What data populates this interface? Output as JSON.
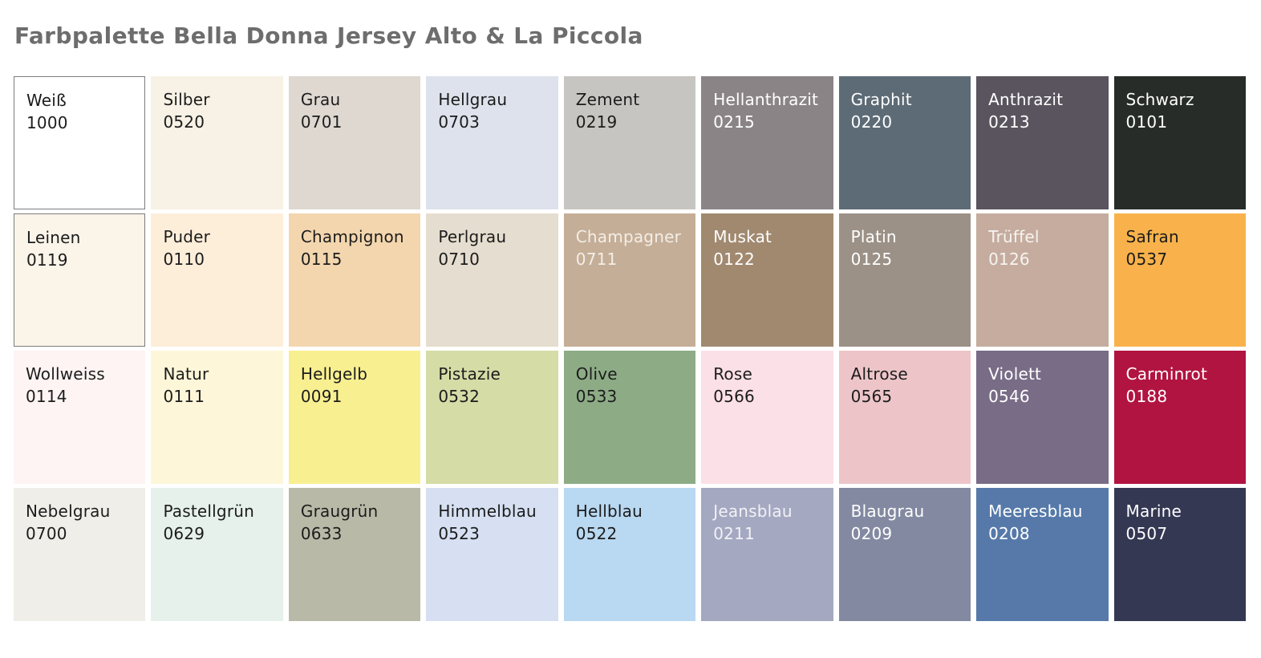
{
  "chart_data": {
    "type": "table",
    "title": "Farbpalette Bella Donna Jersey Alto & La Piccola",
    "title_color": "#6d6d6d",
    "grid": {
      "columns": 9,
      "rows": 4
    },
    "swatches": [
      {
        "name": "Weiß",
        "code": "1000",
        "color": "#ffffff",
        "text_color": "#1c1c1c",
        "border": true
      },
      {
        "name": "Silber",
        "code": "0520",
        "color": "#f7f2e5",
        "text_color": "#1c1c1c",
        "border": false
      },
      {
        "name": "Grau",
        "code": "0701",
        "color": "#ded8d1",
        "text_color": "#1c1c1c",
        "border": false
      },
      {
        "name": "Hellgrau",
        "code": "0703",
        "color": "#dde2ec",
        "text_color": "#1c1c1c",
        "border": false
      },
      {
        "name": "Zement",
        "code": "0219",
        "color": "#c7c5c1",
        "text_color": "#1c1c1c",
        "border": false
      },
      {
        "name": "Hellanthrazit",
        "code": "0215",
        "color": "#8a8487",
        "text_color": "#ffffff",
        "border": false
      },
      {
        "name": "Graphit",
        "code": "0220",
        "color": "#5d6b76",
        "text_color": "#ffffff",
        "border": false
      },
      {
        "name": "Anthrazit",
        "code": "0213",
        "color": "#5a545e",
        "text_color": "#ffffff",
        "border": false
      },
      {
        "name": "Schwarz",
        "code": "0101",
        "color": "#272c28",
        "text_color": "#ffffff",
        "border": false
      },
      {
        "name": "Leinen",
        "code": "0119",
        "color": "#faf4e9",
        "text_color": "#1c1c1c",
        "border": true
      },
      {
        "name": "Puder",
        "code": "0110",
        "color": "#fdeeda",
        "text_color": "#1c1c1c",
        "border": false
      },
      {
        "name": "Champignon",
        "code": "0115",
        "color": "#f3d6ae",
        "text_color": "#1c1c1c",
        "border": false
      },
      {
        "name": "Perlgrau",
        "code": "0710",
        "color": "#e5ddcf",
        "text_color": "#1c1c1c",
        "border": false
      },
      {
        "name": "Champagner",
        "code": "0711",
        "color": "#c5ae97",
        "text_color": "#f3eee7",
        "border": false
      },
      {
        "name": "Muskat",
        "code": "0122",
        "color": "#a18970",
        "text_color": "#ffffff",
        "border": false
      },
      {
        "name": "Platin",
        "code": "0125",
        "color": "#9b9186",
        "text_color": "#ffffff",
        "border": false
      },
      {
        "name": "Trüffel",
        "code": "0126",
        "color": "#c5ac9f",
        "text_color": "#f7f4f0",
        "border": false
      },
      {
        "name": "Safran",
        "code": "0537",
        "color": "#f9b24b",
        "text_color": "#1c1c1c",
        "border": false
      },
      {
        "name": "Wollweiss",
        "code": "0114",
        "color": "#fdf4f3",
        "text_color": "#1c1c1c",
        "border": false
      },
      {
        "name": "Natur",
        "code": "0111",
        "color": "#fdf6d9",
        "text_color": "#1c1c1c",
        "border": false
      },
      {
        "name": "Hellgelb",
        "code": "0091",
        "color": "#f8ef90",
        "text_color": "#1c1c1c",
        "border": false
      },
      {
        "name": "Pistazie",
        "code": "0532",
        "color": "#d5dca6",
        "text_color": "#1c1c1c",
        "border": false
      },
      {
        "name": "Olive",
        "code": "0533",
        "color": "#8dac86",
        "text_color": "#1c1c1c",
        "border": false
      },
      {
        "name": "Rose",
        "code": "0566",
        "color": "#fce0e7",
        "text_color": "#1c1c1c",
        "border": false
      },
      {
        "name": "Altrose",
        "code": "0565",
        "color": "#edc5c8",
        "text_color": "#1c1c1c",
        "border": false
      },
      {
        "name": "Violett",
        "code": "0546",
        "color": "#786c86",
        "text_color": "#ffffff",
        "border": false
      },
      {
        "name": "Carminrot",
        "code": "0188",
        "color": "#b11441",
        "text_color": "#ffffff",
        "border": false
      },
      {
        "name": "Nebelgrau",
        "code": "0700",
        "color": "#efeee9",
        "text_color": "#1c1c1c",
        "border": false
      },
      {
        "name": "Pastellgrün",
        "code": "0629",
        "color": "#e5f1ea",
        "text_color": "#1c1c1c",
        "border": false
      },
      {
        "name": "Graugrün",
        "code": "0633",
        "color": "#b9b9a7",
        "text_color": "#1c1c1c",
        "border": false
      },
      {
        "name": "Himmelblau",
        "code": "0523",
        "color": "#d6e0f2",
        "text_color": "#1c1c1c",
        "border": false
      },
      {
        "name": "Hellblau",
        "code": "0522",
        "color": "#b9d8f1",
        "text_color": "#1c1c1c",
        "border": false
      },
      {
        "name": "Jeansblau",
        "code": "0211",
        "color": "#a4a8c1",
        "text_color": "#f2f2f5",
        "border": false
      },
      {
        "name": "Blaugrau",
        "code": "0209",
        "color": "#8389a1",
        "text_color": "#ffffff",
        "border": false
      },
      {
        "name": "Meeresblau",
        "code": "0208",
        "color": "#5679a9",
        "text_color": "#ffffff",
        "border": false
      },
      {
        "name": "Marine",
        "code": "0507",
        "color": "#343853",
        "text_color": "#ffffff",
        "border": false
      }
    ]
  }
}
